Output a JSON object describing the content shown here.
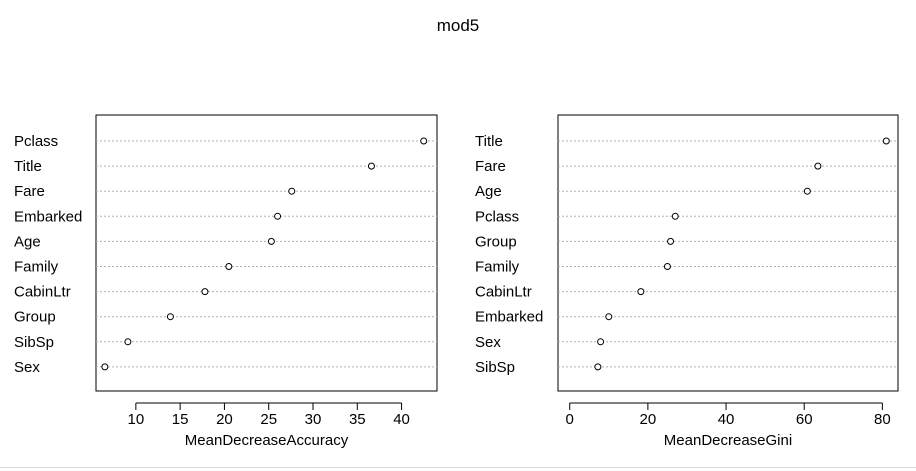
{
  "title": "mod5",
  "chart_data": [
    {
      "type": "scatter",
      "subtype": "dotchart",
      "xlabel": "MeanDecreaseAccuracy",
      "xlim": [
        5.5,
        44
      ],
      "xticks": [
        10,
        15,
        20,
        25,
        30,
        35,
        40
      ],
      "categories": [
        "Pclass",
        "Title",
        "Fare",
        "Embarked",
        "Age",
        "Family",
        "CabinLtr",
        "Group",
        "SibSp",
        "Sex"
      ],
      "values": [
        42.5,
        36.6,
        27.6,
        26.0,
        25.3,
        20.5,
        17.8,
        13.9,
        9.1,
        6.5
      ],
      "grid": "horizontal-dotted"
    },
    {
      "type": "scatter",
      "subtype": "dotchart",
      "xlabel": "MeanDecreaseGini",
      "xlim": [
        -3,
        84
      ],
      "xticks": [
        0,
        20,
        40,
        60,
        80
      ],
      "categories": [
        "Title",
        "Fare",
        "Age",
        "Pclass",
        "Group",
        "Family",
        "CabinLtr",
        "Embarked",
        "Sex",
        "SibSp"
      ],
      "values": [
        81.0,
        63.5,
        60.8,
        27.0,
        25.8,
        25.0,
        18.2,
        10.0,
        7.9,
        7.2
      ],
      "grid": "horizontal-dotted"
    }
  ]
}
